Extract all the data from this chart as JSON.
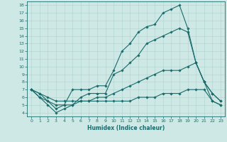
{
  "title": "",
  "xlabel": "Humidex (Indice chaleur)",
  "xlim": [
    -0.5,
    23.5
  ],
  "ylim": [
    3.5,
    18.5
  ],
  "xticks": [
    0,
    1,
    2,
    3,
    4,
    5,
    6,
    7,
    8,
    9,
    10,
    11,
    12,
    13,
    14,
    15,
    16,
    17,
    18,
    19,
    20,
    21,
    22,
    23
  ],
  "yticks": [
    4,
    5,
    6,
    7,
    8,
    9,
    10,
    11,
    12,
    13,
    14,
    15,
    16,
    17,
    18
  ],
  "bg_color": "#cde8e5",
  "line_color": "#1a6b6b",
  "grid_color": "#b0d4d0",
  "line1_x": [
    0,
    1,
    2,
    3,
    4,
    5,
    6,
    7,
    8,
    9,
    10,
    11,
    12,
    13,
    14,
    15,
    16,
    17,
    18,
    19,
    20,
    21,
    22,
    23
  ],
  "line1_y": [
    7.0,
    6.0,
    5.5,
    4.5,
    5.0,
    7.0,
    7.0,
    7.0,
    7.5,
    7.5,
    9.5,
    12.0,
    13.0,
    14.5,
    15.2,
    15.5,
    17.0,
    17.5,
    18.0,
    15.0,
    10.5,
    8.0,
    6.5,
    5.5
  ],
  "line2_x": [
    0,
    1,
    2,
    3,
    4,
    5,
    6,
    7,
    8,
    9,
    10,
    11,
    12,
    13,
    14,
    15,
    16,
    17,
    18,
    19,
    20,
    21,
    22,
    23
  ],
  "line2_y": [
    7.0,
    6.0,
    5.0,
    4.0,
    4.5,
    5.0,
    6.0,
    6.5,
    6.5,
    6.5,
    9.0,
    9.5,
    10.5,
    11.5,
    13.0,
    13.5,
    14.0,
    14.5,
    15.0,
    14.5,
    10.5,
    8.0,
    6.5,
    5.5
  ],
  "line3_x": [
    0,
    1,
    2,
    3,
    4,
    5,
    6,
    7,
    8,
    9,
    10,
    11,
    12,
    13,
    14,
    15,
    16,
    17,
    18,
    19,
    20,
    21,
    22,
    23
  ],
  "line3_y": [
    7.0,
    6.5,
    5.5,
    5.0,
    5.0,
    5.0,
    5.5,
    5.5,
    6.0,
    6.0,
    6.5,
    7.0,
    7.5,
    8.0,
    8.5,
    9.0,
    9.5,
    9.5,
    9.5,
    10.0,
    10.5,
    8.0,
    5.5,
    5.0
  ],
  "line4_x": [
    0,
    1,
    2,
    3,
    4,
    5,
    6,
    7,
    8,
    9,
    10,
    11,
    12,
    13,
    14,
    15,
    16,
    17,
    18,
    19,
    20,
    21,
    22,
    23
  ],
  "line4_y": [
    7.0,
    6.5,
    6.0,
    5.5,
    5.5,
    5.5,
    5.5,
    5.5,
    5.5,
    5.5,
    5.5,
    5.5,
    5.5,
    6.0,
    6.0,
    6.0,
    6.5,
    6.5,
    6.5,
    7.0,
    7.0,
    7.0,
    5.5,
    5.0
  ],
  "marker": "D",
  "markersize": 1.8,
  "linewidth": 0.8,
  "tick_fontsize": 4.5,
  "xlabel_fontsize": 5.5
}
